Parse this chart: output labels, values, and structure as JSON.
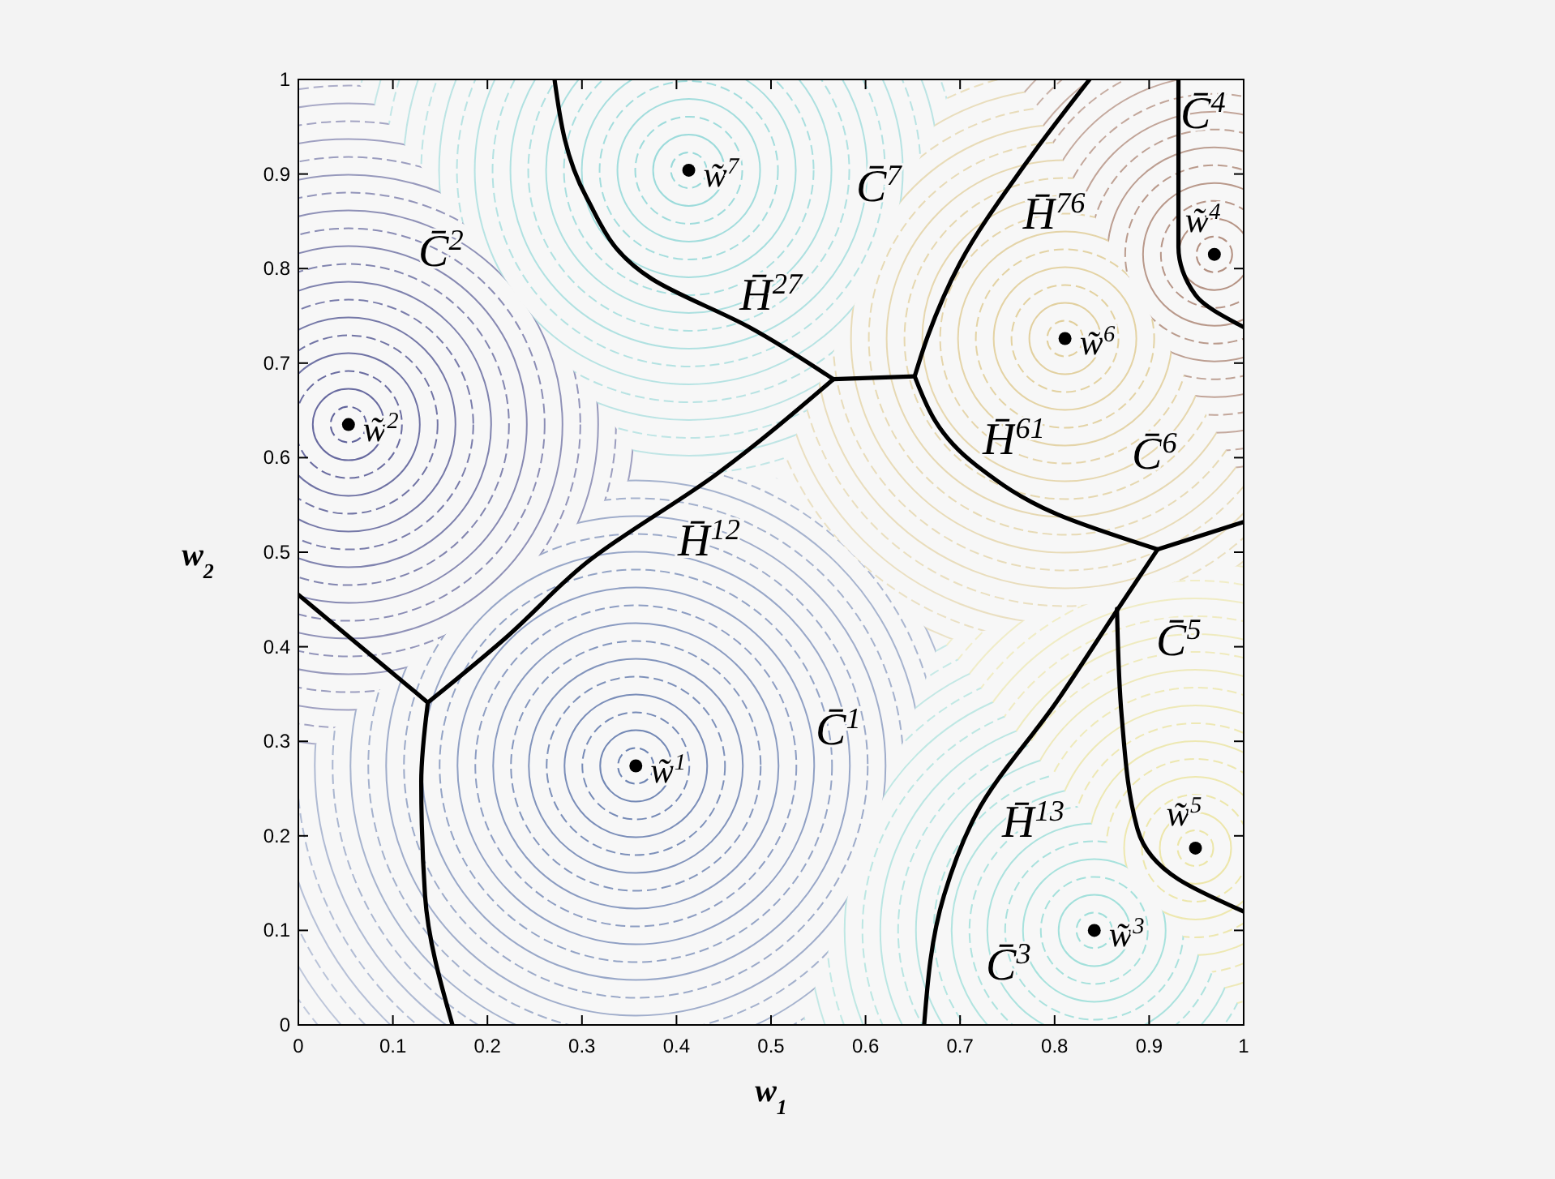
{
  "chart_data": {
    "type": "scatter",
    "xlabel": "w$_{1}$",
    "ylabel": "w$_{2}$",
    "xlim": [
      0,
      1
    ],
    "ylim": [
      0,
      1
    ],
    "xticks": [
      0,
      0.1,
      0.2,
      0.3,
      0.4,
      0.5,
      0.6,
      0.7,
      0.8,
      0.9,
      1
    ],
    "yticks": [
      0,
      0.1,
      0.2,
      0.3,
      0.4,
      0.5,
      0.6,
      0.7,
      0.8,
      0.9,
      1
    ],
    "grid": false,
    "series": [
      {
        "marker": "circle",
        "color": "#000000",
        "x": [
          0.357,
          0.053,
          0.842,
          0.969,
          0.949,
          0.811,
          0.413
        ],
        "values": [
          0.274,
          0.635,
          0.1,
          0.815,
          0.187,
          0.726,
          0.904
        ]
      },
      {
        "type": "line",
        "color": "#000000",
        "x": [
          0,
          0.137
        ],
        "values": [
          0.455,
          0.341
        ]
      },
      {
        "type": "line",
        "color": "#000000",
        "x": [
          0.137,
          0.13,
          0.134,
          0.163
        ],
        "values": [
          0.341,
          0.257,
          0.137,
          0
        ]
      },
      {
        "type": "line",
        "color": "#000000",
        "x": [
          0.137,
          0.22,
          0.305,
          0.443,
          0.566
        ],
        "values": [
          0.341,
          0.41,
          0.489,
          0.583,
          0.683
        ]
      },
      {
        "type": "line",
        "color": "#000000",
        "x": [
          0.271,
          0.305,
          0.374,
          0.477,
          0.566
        ],
        "values": [
          1,
          0.875,
          0.789,
          0.738,
          0.683
        ]
      },
      {
        "type": "line",
        "color": "#000000",
        "x": [
          0.566,
          0.652
        ],
        "values": [
          0.683,
          0.686
        ]
      },
      {
        "type": "line",
        "color": "#000000",
        "x": [
          0.652,
          0.666,
          0.7,
          0.768,
          0.837
        ],
        "values": [
          0.686,
          0.729,
          0.806,
          0.909,
          1
        ]
      },
      {
        "type": "line",
        "color": "#000000",
        "x": [
          0.652,
          0.717,
          0.803,
          0.909
        ],
        "values": [
          0.686,
          0.592,
          0.54,
          0.503
        ]
      },
      {
        "type": "line",
        "color": "#000000",
        "x": [
          0.931,
          0.931,
          0.949,
          1
        ],
        "values": [
          1,
          0.823,
          0.772,
          0.738
        ]
      },
      {
        "type": "line",
        "color": "#000000",
        "x": [
          0.909,
          1
        ],
        "values": [
          0.503,
          0.532
        ]
      },
      {
        "type": "line",
        "color": "#000000",
        "x": [
          0.909,
          0.871,
          0.803,
          0.717,
          0.683,
          0.662
        ],
        "values": [
          0.503,
          0.446,
          0.343,
          0.223,
          0.137,
          0
        ]
      },
      {
        "type": "line",
        "color": "#000000",
        "x": [
          0.866,
          0.871,
          0.888,
          0.931,
          1
        ],
        "values": [
          0.44,
          0.326,
          0.206,
          0.154,
          0.12
        ]
      }
    ],
    "annotations": [
      {
        "text": "w̃$^{1}$",
        "x": 0.357,
        "y": 0.274
      },
      {
        "text": "w̃$^{2}$",
        "x": 0.053,
        "y": 0.635
      },
      {
        "text": "w̃$^{3}$",
        "x": 0.842,
        "y": 0.1
      },
      {
        "text": "w̃$^{4}$",
        "x": 0.969,
        "y": 0.815
      },
      {
        "text": "w̃$^{5}$",
        "x": 0.949,
        "y": 0.187
      },
      {
        "text": "w̃$^{6}$",
        "x": 0.811,
        "y": 0.726
      },
      {
        "text": "w̃$^{7}$",
        "x": 0.413,
        "y": 0.904
      },
      "C̄$^{1}$",
      "C̄$^{2}$",
      "C̄$^{3}$",
      "C̄$^{4}$",
      "C̄$^{5}$",
      "C̄$^{6}$",
      "C̄$^{7}$",
      {
        "text": "H̄$^{27}$",
        "x": 0.46,
        "y": 0.75
      },
      {
        "text": "H̄$^{12}$",
        "x": 0.374,
        "y": 0.536
      },
      {
        "text": "H̄$^{76}$",
        "x": 0.739,
        "y": 0.866
      },
      {
        "text": "H̄$^{61}$",
        "x": 0.717,
        "y": 0.592
      },
      {
        "text": "H̄$^{13}$",
        "x": 0.717,
        "y": 0.223
      }
    ]
  }
}
